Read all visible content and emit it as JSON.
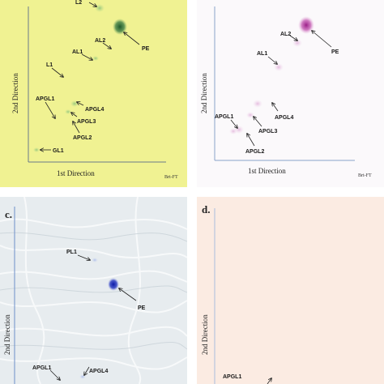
{
  "panels": {
    "a": {
      "axis_x": "1st Direction",
      "axis_y": "2nd Direction",
      "corner_tag": "Brt-FT",
      "labels": {
        "l2": "L2",
        "pe": "PE",
        "al2": "AL2",
        "al1": "AL1",
        "l1": "L1",
        "apgl1": "APGL1",
        "apgl4": "APGL4",
        "apgl3": "APGL3",
        "apgl2": "APGL2",
        "gl1": "GL1"
      }
    },
    "b": {
      "axis_x": "1st Direction",
      "axis_y": "2nd Direction",
      "corner_tag": "Brt-FT",
      "labels": {
        "al2": "AL2",
        "pe": "PE",
        "al1": "AL1",
        "apgl1": "APGL1",
        "apgl4": "APGL4",
        "apgl3": "APGL3",
        "apgl2": "APGL2"
      }
    },
    "c": {
      "panel_label": "c.",
      "axis_y": "2nd Direction",
      "labels": {
        "pl1": "PL1",
        "pe": "PE",
        "apgl1": "APGL1",
        "apgl4": "APGL4"
      }
    },
    "d": {
      "panel_label": "d.",
      "axis_y": "2nd Direction",
      "labels": {
        "apgl1": "APGL1"
      }
    }
  },
  "colors": {
    "panel_a_bg": "#f0f292",
    "panel_b_bg": "#fbf9fb",
    "panel_c_bg": "#e7ecef",
    "panel_d_bg": "#fbebe2",
    "stain_a": "#2f6b3a",
    "stain_b": "#b0349a",
    "stain_c": "#1f2fb0"
  }
}
